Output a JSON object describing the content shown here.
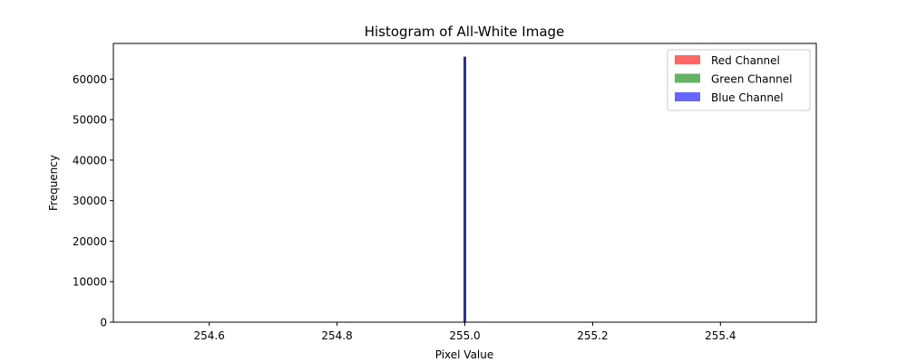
{
  "chart_data": {
    "type": "bar",
    "title": "Histogram of All-White Image",
    "xlabel": "Pixel Value",
    "ylabel": "Frequency",
    "xlim": [
      254.45,
      255.55
    ],
    "ylim": [
      0,
      68800
    ],
    "x_ticks": [
      "254.6",
      "254.8",
      "255.0",
      "255.2",
      "255.4"
    ],
    "x_tick_values": [
      254.6,
      254.8,
      255.0,
      255.2,
      255.4
    ],
    "y_ticks": [
      "0",
      "10000",
      "20000",
      "30000",
      "40000",
      "50000",
      "60000"
    ],
    "y_tick_values": [
      0,
      10000,
      20000,
      30000,
      40000,
      50000,
      60000
    ],
    "grid": false,
    "legend_position": "top-right",
    "series": [
      {
        "name": "Red Channel",
        "color": "#ff0000",
        "alpha": 0.6,
        "x": [
          255
        ],
        "values": [
          65536
        ]
      },
      {
        "name": "Green Channel",
        "color": "#008000",
        "alpha": 0.6,
        "x": [
          255
        ],
        "values": [
          65536
        ]
      },
      {
        "name": "Blue Channel",
        "color": "#0000ff",
        "alpha": 0.6,
        "x": [
          255
        ],
        "values": [
          65536
        ]
      }
    ]
  }
}
